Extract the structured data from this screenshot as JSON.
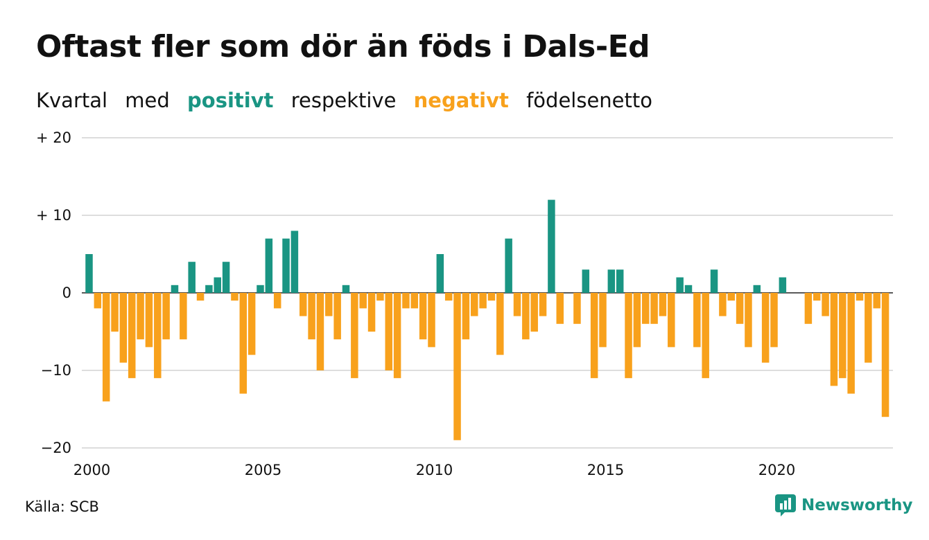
{
  "title": "Oftast fler som dör än föds i Dals-Ed",
  "subtitle": {
    "part1": "Kvartal",
    "part2": "med",
    "positive": "positivt",
    "part3": "respektive",
    "negative": "negativt",
    "part4": "födelsenetto"
  },
  "source": "Källa: SCB",
  "brand": "Newsworthy",
  "colors": {
    "positive": "#1a9583",
    "negative": "#f8a11c",
    "grid": "#dddddd"
  },
  "chart_data": {
    "type": "bar",
    "ylim": [
      -20,
      20
    ],
    "yticks": [
      20,
      10,
      0,
      -10,
      -20
    ],
    "ytick_labels": [
      "+ 20",
      "+ 10",
      "0",
      "−10",
      "−20"
    ],
    "xtick_labels": [
      "2000",
      "2005",
      "2010",
      "2015",
      "2020"
    ],
    "xtick_years": [
      2000,
      2005,
      2010,
      2015,
      2020
    ],
    "start_year": 2000,
    "grid": true,
    "values": [
      5,
      -2,
      -14,
      -5,
      -9,
      -11,
      -6,
      -7,
      -11,
      -6,
      1,
      -6,
      4,
      -1,
      1,
      2,
      4,
      -1,
      -13,
      -8,
      1,
      7,
      -2,
      7,
      8,
      -3,
      -6,
      -10,
      -3,
      -6,
      1,
      -11,
      -2,
      -5,
      -1,
      -10,
      -11,
      -2,
      -2,
      -6,
      -7,
      5,
      -1,
      -19,
      -6,
      -3,
      -2,
      -1,
      -8,
      7,
      -3,
      -6,
      -5,
      -3,
      12,
      -4,
      0,
      -4,
      3,
      -11,
      -7,
      3,
      3,
      -11,
      -7,
      -4,
      -4,
      -3,
      -7,
      2,
      1,
      -7,
      -11,
      3,
      -3,
      -1,
      -4,
      -7,
      1,
      -9,
      -7,
      2,
      0,
      0,
      -4,
      -1,
      -3,
      -12,
      -11,
      -13,
      -1,
      -9,
      -2,
      -16
    ]
  }
}
